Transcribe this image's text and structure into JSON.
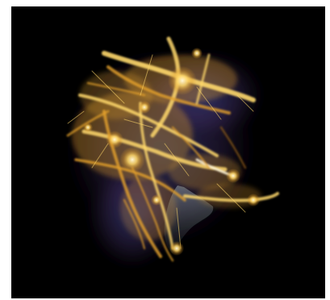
{
  "image": {
    "description_free": true,
    "background_color": "#000000",
    "frame_color": "#ffffff",
    "palette": {
      "hot_core": "#fff6d6",
      "bright_gold": "#ffd86b",
      "amber": "#e3a02b",
      "dim_gold": "#8a5a12",
      "blue_haze": "#3b4a9a",
      "violet_haze": "#5a3f8a",
      "water_gray": "#6f7f86"
    }
  }
}
